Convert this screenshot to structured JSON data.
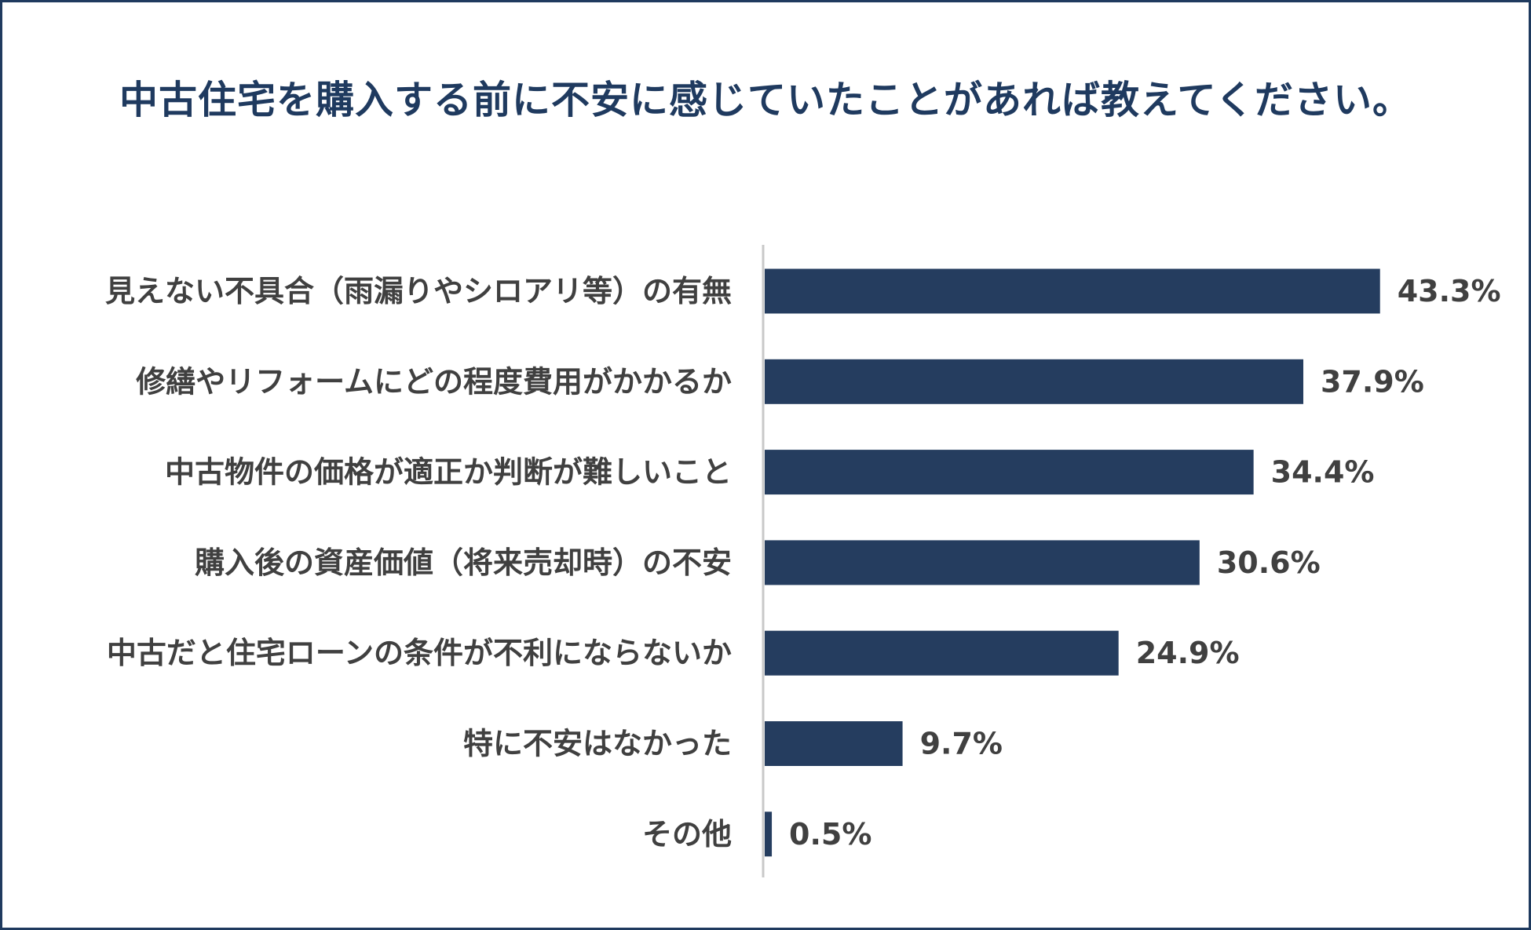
{
  "chart_data": {
    "type": "bar",
    "orientation": "horizontal",
    "title": "中古住宅を購入する前に不安に感じていたことがあれば教えてください。",
    "categories": [
      "見えない不具合（雨漏りやシロアリ等）の有無",
      "修繕やリフォームにどの程度費用がかかるか",
      "中古物件の価格が適正か判断が難しいこと",
      "購入後の資産価値（将来売却時）の不安",
      "中古だと住宅ローンの条件が不利にならないか",
      "特に不安はなかった",
      "その他"
    ],
    "values": [
      43.3,
      37.9,
      34.4,
      30.6,
      24.9,
      9.7,
      0.5
    ],
    "value_labels": [
      "43.3%",
      "37.9%",
      "34.4%",
      "30.6%",
      "24.9%",
      "9.7%",
      "0.5%"
    ],
    "unit": "%",
    "xlim": [
      0,
      50
    ],
    "grid": false,
    "legend": "none",
    "colors": {
      "bar": "#253d5f",
      "title": "#1f3a5f",
      "axis": "#c8c8c8",
      "label": "#404040",
      "frame": "#1f3a5f"
    }
  }
}
